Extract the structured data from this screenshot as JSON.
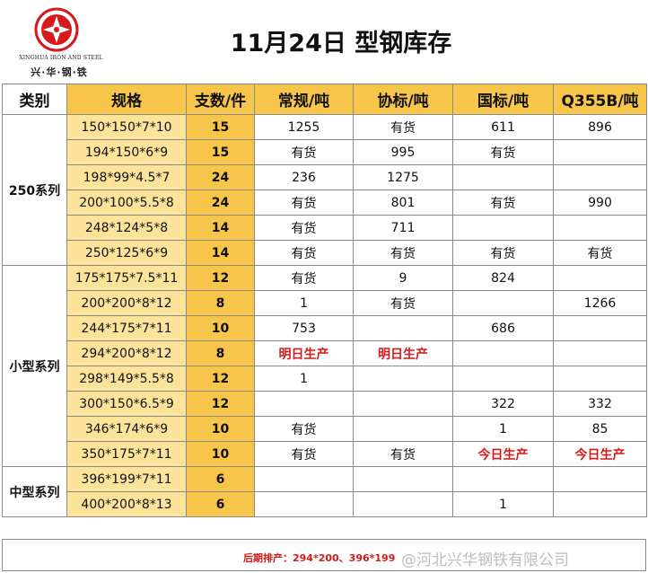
{
  "logo": {
    "english": "XINGHUA IRON AND STEEL",
    "chinese": "兴·华·钢·铁",
    "brand_color": "#d41a1a"
  },
  "title": "11月24日 型钢库存",
  "headers": [
    "类别",
    "规格",
    "支数/件",
    "常规/吨",
    "协标/吨",
    "国标/吨",
    "Q355B/吨"
  ],
  "groups": [
    {
      "name": "250系列",
      "rows": [
        {
          "spec": "150*150*7*10",
          "count": "15",
          "regular": "1255",
          "assoc": "有货",
          "national": "611",
          "q355b": "896"
        },
        {
          "spec": "194*150*6*9",
          "count": "15",
          "regular": "有货",
          "assoc": "995",
          "national": "有货",
          "q355b": ""
        },
        {
          "spec": "198*99*4.5*7",
          "count": "24",
          "regular": "236",
          "assoc": "1275",
          "national": "",
          "q355b": ""
        },
        {
          "spec": "200*100*5.5*8",
          "count": "24",
          "regular": "有货",
          "assoc": "801",
          "national": "有货",
          "q355b": "990"
        },
        {
          "spec": "248*124*5*8",
          "count": "14",
          "regular": "有货",
          "assoc": "711",
          "national": "",
          "q355b": ""
        },
        {
          "spec": "250*125*6*9",
          "count": "14",
          "regular": "有货",
          "assoc": "有货",
          "national": "有货",
          "q355b": "有货"
        }
      ]
    },
    {
      "name": "小型系列",
      "rows": [
        {
          "spec": "175*175*7.5*11",
          "count": "12",
          "regular": "有货",
          "assoc": "9",
          "national": "824",
          "q355b": ""
        },
        {
          "spec": "200*200*8*12",
          "count": "8",
          "regular": "1",
          "assoc": "有货",
          "national": "",
          "q355b": "1266"
        },
        {
          "spec": "244*175*7*11",
          "count": "10",
          "regular": "753",
          "assoc": "",
          "national": "686",
          "q355b": ""
        },
        {
          "spec": "294*200*8*12",
          "count": "8",
          "regular": "明日生产",
          "assoc": "明日生产",
          "national": "",
          "q355b": ""
        },
        {
          "spec": "298*149*5.5*8",
          "count": "12",
          "regular": "1",
          "assoc": "",
          "national": "",
          "q355b": ""
        },
        {
          "spec": "300*150*6.5*9",
          "count": "12",
          "regular": "",
          "assoc": "",
          "national": "322",
          "q355b": "332"
        },
        {
          "spec": "346*174*6*9",
          "count": "10",
          "regular": "有货",
          "assoc": "",
          "national": "1",
          "q355b": "85"
        },
        {
          "spec": "350*175*7*11",
          "count": "10",
          "regular": "有货",
          "assoc": "有货",
          "national": "今日生产",
          "q355b": "今日生产"
        }
      ]
    },
    {
      "name": "中型系列",
      "rows": [
        {
          "spec": "396*199*7*11",
          "count": "6",
          "regular": "",
          "assoc": "",
          "national": "",
          "q355b": ""
        },
        {
          "spec": "400*200*8*13",
          "count": "6",
          "regular": "",
          "assoc": "",
          "national": "1",
          "q355b": ""
        }
      ]
    }
  ],
  "footer": {
    "note": "后期排产：294*200、396*199",
    "watermark": "@河北兴华钢铁有限公司"
  },
  "colors": {
    "header_fill": "#f6c54a",
    "spec_fill": "#fbe49a",
    "highlight_text": "#d41a1a"
  }
}
